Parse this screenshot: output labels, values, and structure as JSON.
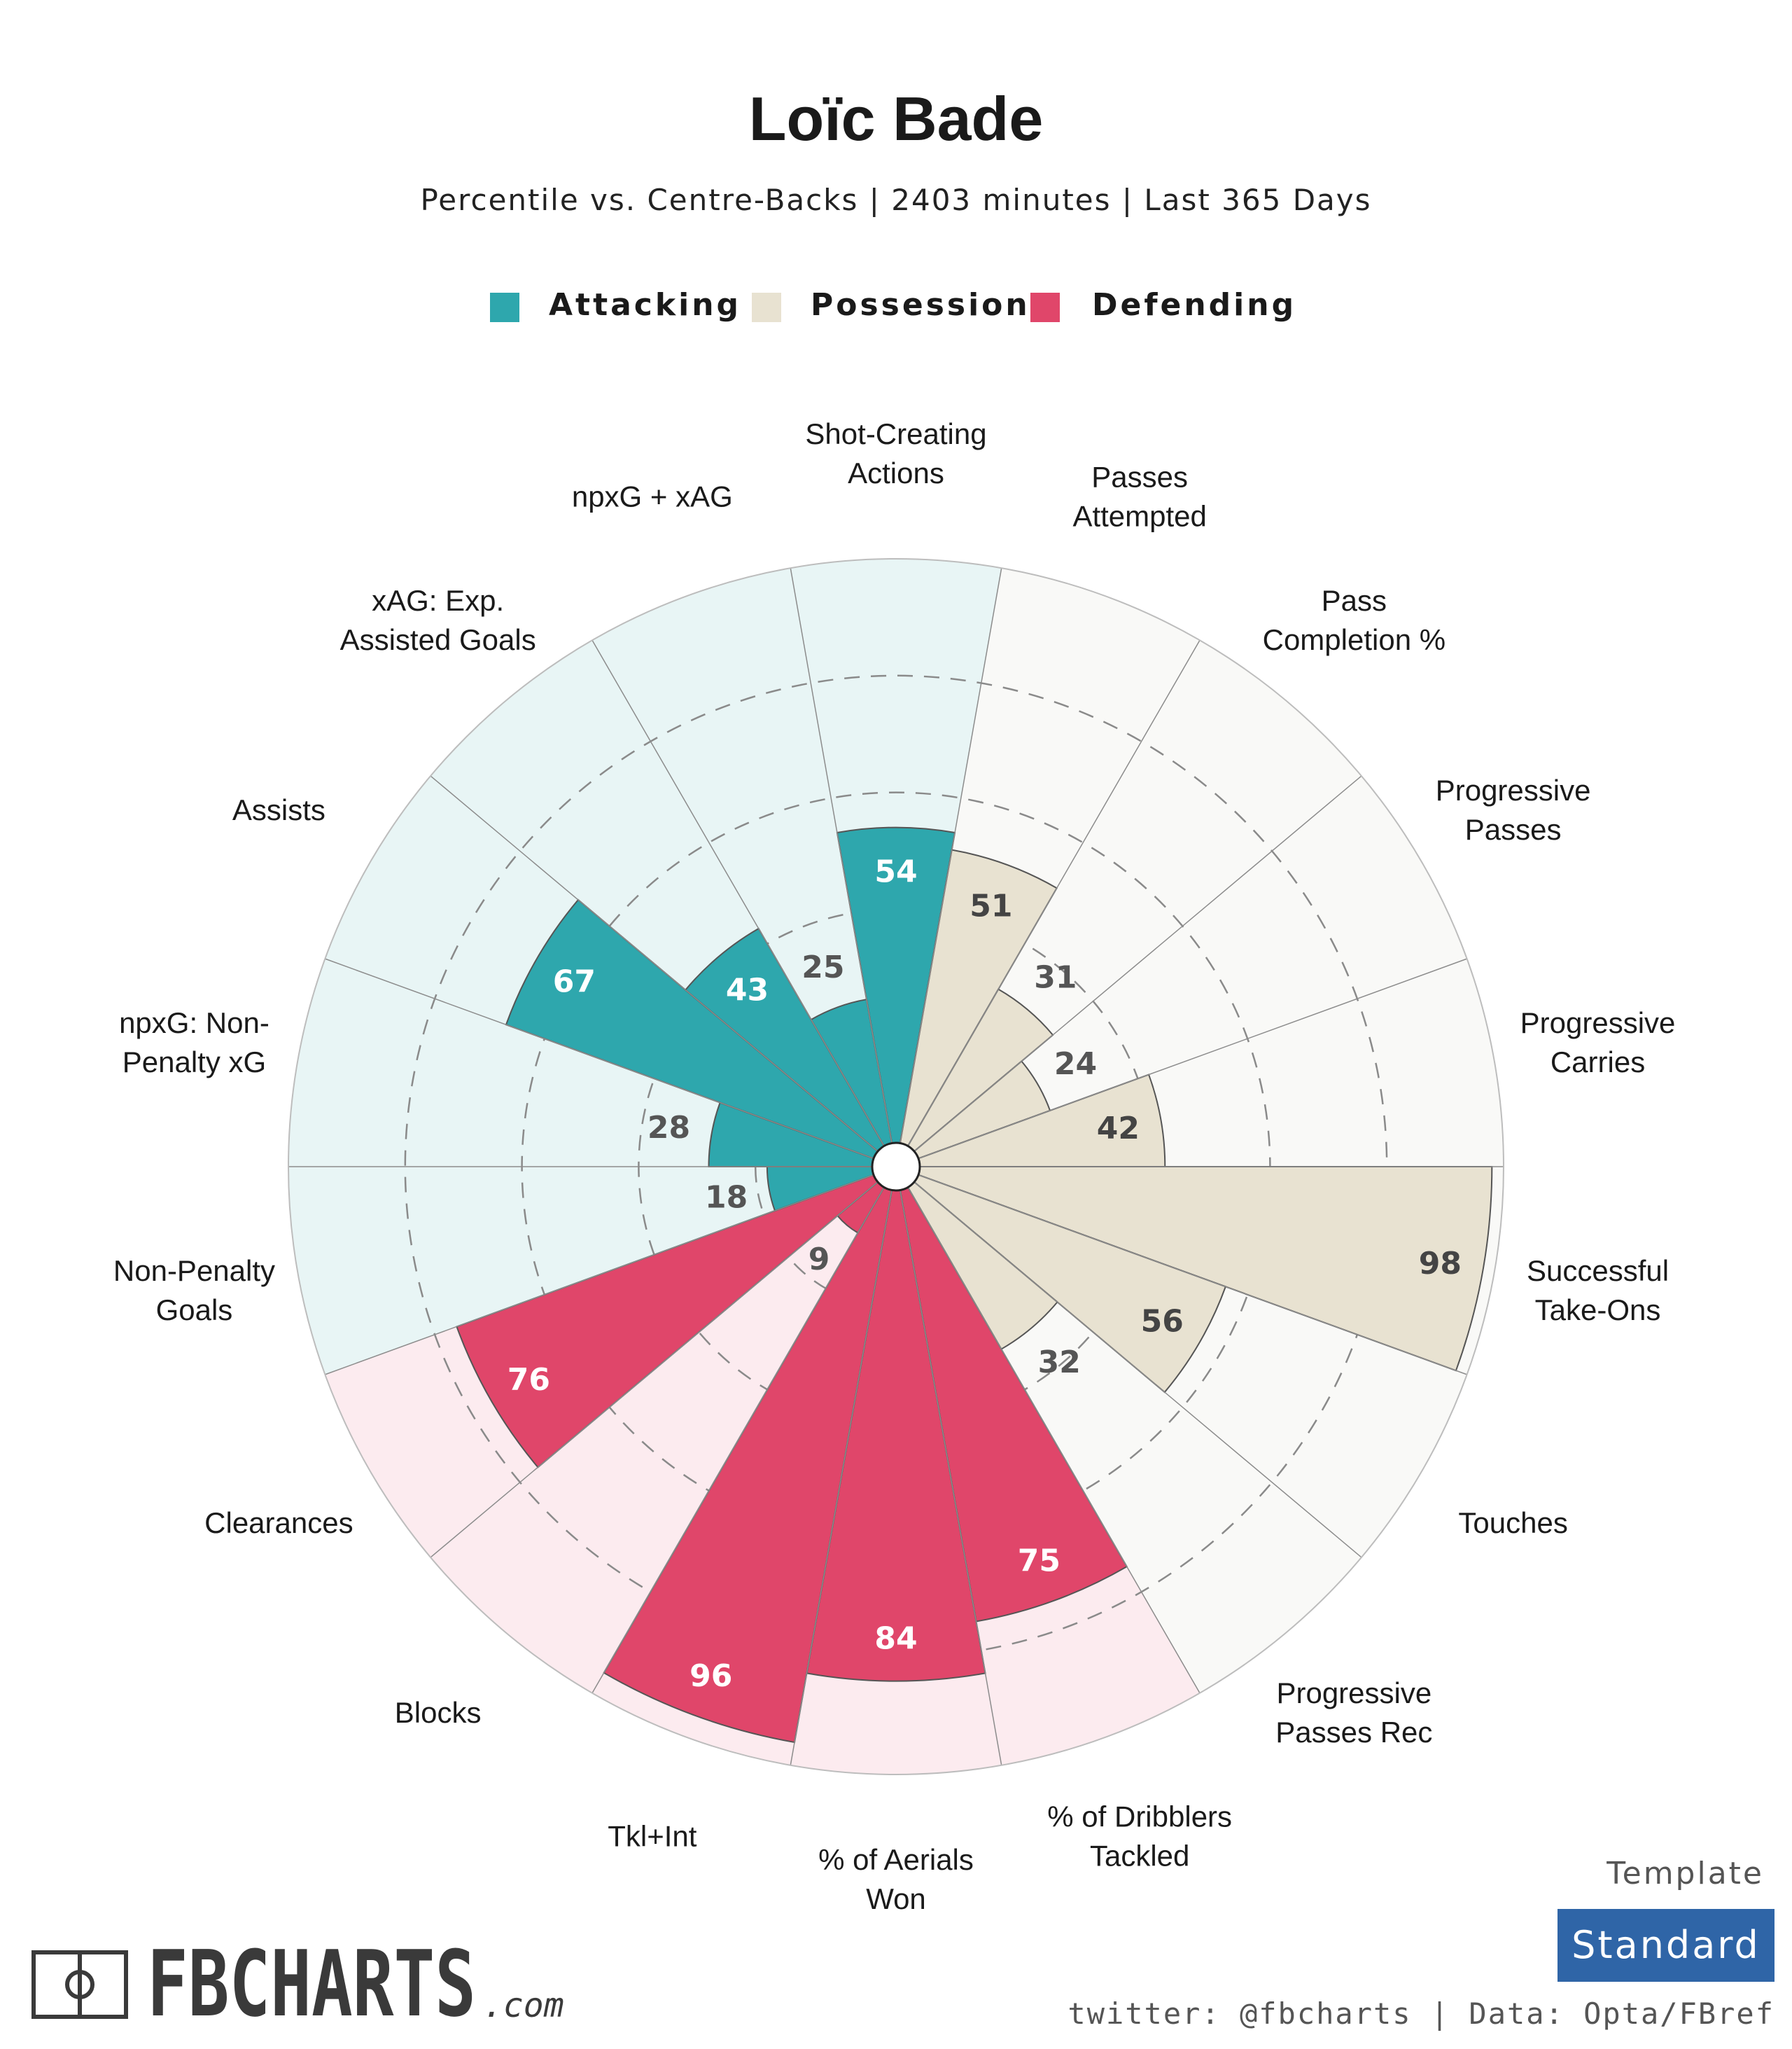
{
  "header": {
    "title": "Loïc Bade",
    "subtitle": "Percentile vs. Centre-Backs | 2403 minutes | Last 365 Days"
  },
  "legend": [
    {
      "label": "Attacking",
      "color": "#2ea7ad"
    },
    {
      "label": "Possession",
      "color": "#e8e2d1"
    },
    {
      "label": "Defending",
      "color": "#e0466a"
    }
  ],
  "chart_data": {
    "type": "polar-bar",
    "title": "Loïc Bade",
    "subtitle": "Percentile vs. Centre-Backs | 2403 minutes | Last 365 Days",
    "rlim": [
      0,
      100
    ],
    "grid_rings": [
      20,
      40,
      60,
      80
    ],
    "categories": [
      {
        "label": [
          "Shot-Creating",
          "Actions"
        ],
        "value": 54,
        "group": "Attacking"
      },
      {
        "label": [
          "Passes",
          "Attempted"
        ],
        "value": 51,
        "group": "Possession"
      },
      {
        "label": [
          "Pass",
          "Completion %"
        ],
        "value": 31,
        "group": "Possession"
      },
      {
        "label": [
          "Progressive",
          "Passes"
        ],
        "value": 24,
        "group": "Possession"
      },
      {
        "label": [
          "Progressive",
          "Carries"
        ],
        "value": 42,
        "group": "Possession"
      },
      {
        "label": [
          "Successful",
          "Take-Ons"
        ],
        "value": 98,
        "group": "Possession"
      },
      {
        "label": [
          "Touches"
        ],
        "value": 56,
        "group": "Possession"
      },
      {
        "label": [
          "Progressive",
          "Passes Rec"
        ],
        "value": 32,
        "group": "Possession"
      },
      {
        "label": [
          "% of Dribblers",
          "Tackled"
        ],
        "value": 75,
        "group": "Defending"
      },
      {
        "label": [
          "% of Aerials",
          "Won"
        ],
        "value": 84,
        "group": "Defending"
      },
      {
        "label": [
          "Tkl+Int"
        ],
        "value": 96,
        "group": "Defending"
      },
      {
        "label": [
          "Blocks"
        ],
        "value": 9,
        "group": "Defending"
      },
      {
        "label": [
          "Clearances"
        ],
        "value": 76,
        "group": "Defending"
      },
      {
        "label": [
          "Non-Penalty",
          "Goals"
        ],
        "value": 18,
        "group": "Attacking"
      },
      {
        "label": [
          "npxG: Non-",
          "Penalty xG"
        ],
        "value": 28,
        "group": "Attacking"
      },
      {
        "label": [
          "Assists"
        ],
        "value": 67,
        "group": "Attacking"
      },
      {
        "label": [
          "xAG: Exp.",
          "Assisted Goals"
        ],
        "value": 43,
        "group": "Attacking"
      },
      {
        "label": [
          "npxG + xAG"
        ],
        "value": 25,
        "group": "Attacking"
      }
    ],
    "group_colors": {
      "Attacking": {
        "fill": "#2ea7ad",
        "bg": "#e8f5f5",
        "text_in": "#ffffff",
        "text_out": "#555555"
      },
      "Possession": {
        "fill": "#e8e2d1",
        "bg": "#f9f9f7",
        "text_in": "#444444",
        "text_out": "#555555"
      },
      "Defending": {
        "fill": "#e0466a",
        "bg": "#fcebef",
        "text_in": "#ffffff",
        "text_out": "#555555"
      }
    }
  },
  "footer": {
    "brand": "FBCHARTS",
    "brand_suffix": ".com",
    "credit": "twitter: @fbcharts | Data: Opta/FBref",
    "template_label": "Template",
    "template_value": "Standard"
  }
}
